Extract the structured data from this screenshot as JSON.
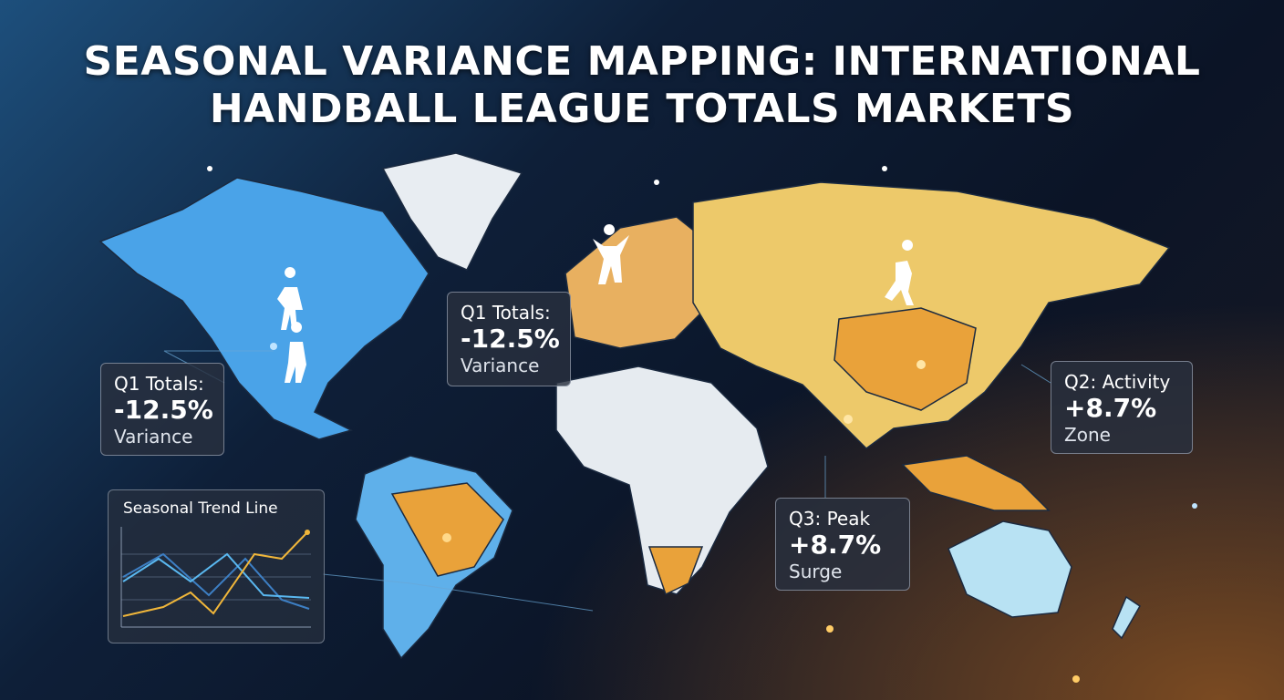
{
  "header": {
    "title_lines": [
      "SEASONAL VARIANCE MAPPING: INTERNATIONAL",
      "HANDBALL LEAGUE TOTALS MARKETS"
    ]
  },
  "callouts": [
    {
      "label": "Q1 Totals:",
      "value": "-12.5%",
      "caption": "Variance"
    },
    {
      "label": "Q1 Totals:",
      "value": "-12.5%",
      "caption": "Variance"
    },
    {
      "label": "Q2: Activity",
      "value": "+8.7%",
      "caption": "Zone"
    },
    {
      "label": "Q3: Peak",
      "value": "+8.7%",
      "caption": "Surge"
    }
  ],
  "trend_panel": {
    "title": "Seasonal Trend Line"
  }
}
